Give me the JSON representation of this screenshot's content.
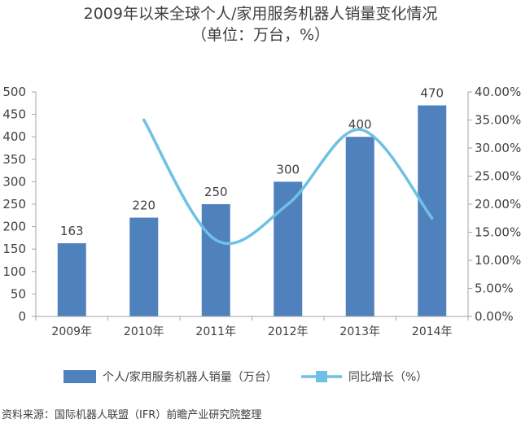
{
  "title_line1": "2009年以来全球个人/家用服务机器人销量变化情况",
  "title_line2": "（单位：万台，%）",
  "source": "资料来源：国际机器人联盟（IFR）前瞻产业研究院整理",
  "chart_data": {
    "type": "bar",
    "categories": [
      "2009年",
      "2010年",
      "2011年",
      "2012年",
      "2013年",
      "2014年"
    ],
    "series": [
      {
        "name": "个人/家用服务机器人销量（万台）",
        "type": "bar",
        "axis": "left",
        "values": [
          163,
          220,
          250,
          300,
          400,
          470
        ],
        "color": "#4f81bd",
        "data_labels": [
          "163",
          "220",
          "250",
          "300",
          "400",
          "470"
        ]
      },
      {
        "name": "同比增长（%）",
        "type": "line",
        "axis": "right",
        "smooth": true,
        "values": [
          null,
          35.0,
          13.6,
          20.0,
          33.3,
          17.5
        ],
        "color": "#6ec1e4"
      }
    ],
    "y_left": {
      "min": 0,
      "max": 500,
      "step": 50,
      "ticks": [
        "0",
        "50",
        "100",
        "150",
        "200",
        "250",
        "300",
        "350",
        "400",
        "450",
        "500"
      ]
    },
    "y_right": {
      "min": 0,
      "max": 40,
      "step": 5,
      "ticks": [
        "0.00%",
        "5.00%",
        "10.00%",
        "15.00%",
        "20.00%",
        "25.00%",
        "30.00%",
        "35.00%",
        "40.00%"
      ]
    },
    "legend_position": "bottom",
    "grid": false
  }
}
